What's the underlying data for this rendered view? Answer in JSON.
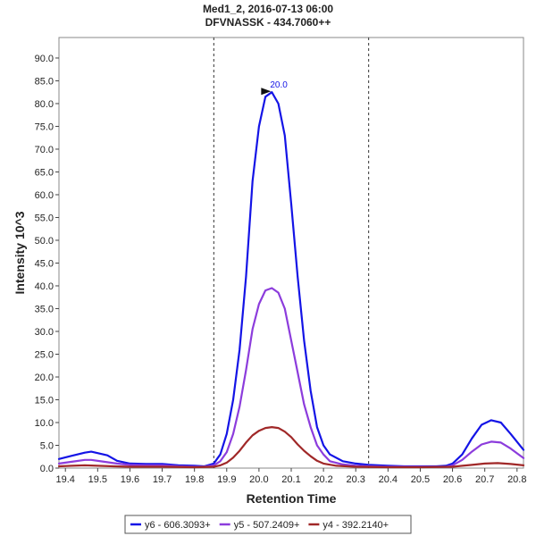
{
  "chart_data": {
    "type": "line",
    "title": "Med1_2, 2016-07-13 06:00",
    "subtitle": "DFVNASSK - 434.7060++",
    "xlabel": "Retention Time",
    "ylabel": "Intensity 10^3",
    "xlim": [
      19.38,
      20.82
    ],
    "ylim": [
      0,
      94.5
    ],
    "xticks": [
      "19.4",
      "19.5",
      "19.6",
      "19.7",
      "19.8",
      "19.9",
      "20.0",
      "20.1",
      "20.2",
      "20.3",
      "20.4",
      "20.5",
      "20.6",
      "20.7",
      "20.8"
    ],
    "yticks": [
      "0.0",
      "5.0",
      "10.0",
      "15.0",
      "20.0",
      "25.0",
      "30.0",
      "35.0",
      "40.0",
      "45.0",
      "50.0",
      "55.0",
      "60.0",
      "65.0",
      "70.0",
      "75.0",
      "80.0",
      "85.0",
      "90.0"
    ],
    "boundaries": [
      19.86,
      20.34
    ],
    "peak_annotation": {
      "label": "20.0",
      "x": 20.04,
      "y": 82.5
    },
    "legend_position": "bottom",
    "colors": {
      "y6": "#1414e6",
      "y5": "#8c3cdc",
      "y4": "#a02828"
    },
    "series": [
      {
        "name": "y6 - 606.3093+",
        "color": "#1414e6",
        "points": [
          [
            19.38,
            2.0
          ],
          [
            19.42,
            2.7
          ],
          [
            19.46,
            3.4
          ],
          [
            19.48,
            3.6
          ],
          [
            19.5,
            3.3
          ],
          [
            19.53,
            2.8
          ],
          [
            19.56,
            1.6
          ],
          [
            19.6,
            1.0
          ],
          [
            19.65,
            0.9
          ],
          [
            19.7,
            0.9
          ],
          [
            19.75,
            0.6
          ],
          [
            19.8,
            0.5
          ],
          [
            19.83,
            0.4
          ],
          [
            19.86,
            1.0
          ],
          [
            19.88,
            3.0
          ],
          [
            19.9,
            7.5
          ],
          [
            19.92,
            15.0
          ],
          [
            19.94,
            26.0
          ],
          [
            19.96,
            42.0
          ],
          [
            19.98,
            63.0
          ],
          [
            20.0,
            75.0
          ],
          [
            20.02,
            81.5
          ],
          [
            20.04,
            82.5
          ],
          [
            20.06,
            80.0
          ],
          [
            20.08,
            73.0
          ],
          [
            20.1,
            58.0
          ],
          [
            20.12,
            42.0
          ],
          [
            20.14,
            28.0
          ],
          [
            20.16,
            17.0
          ],
          [
            20.18,
            9.0
          ],
          [
            20.2,
            5.0
          ],
          [
            20.22,
            3.0
          ],
          [
            20.26,
            1.5
          ],
          [
            20.3,
            1.0
          ],
          [
            20.34,
            0.7
          ],
          [
            20.4,
            0.5
          ],
          [
            20.45,
            0.4
          ],
          [
            20.5,
            0.4
          ],
          [
            20.55,
            0.4
          ],
          [
            20.58,
            0.5
          ],
          [
            20.6,
            1.0
          ],
          [
            20.63,
            3.0
          ],
          [
            20.66,
            6.5
          ],
          [
            20.69,
            9.5
          ],
          [
            20.72,
            10.5
          ],
          [
            20.75,
            10.0
          ],
          [
            20.78,
            7.5
          ],
          [
            20.82,
            4.0
          ]
        ]
      },
      {
        "name": "y5 - 507.2409+",
        "color": "#8c3cdc",
        "points": [
          [
            19.38,
            1.0
          ],
          [
            19.42,
            1.4
          ],
          [
            19.46,
            1.8
          ],
          [
            19.48,
            1.8
          ],
          [
            19.52,
            1.4
          ],
          [
            19.56,
            1.0
          ],
          [
            19.6,
            0.7
          ],
          [
            19.65,
            0.6
          ],
          [
            19.7,
            0.6
          ],
          [
            19.75,
            0.4
          ],
          [
            19.8,
            0.3
          ],
          [
            19.83,
            0.3
          ],
          [
            19.86,
            0.6
          ],
          [
            19.88,
            1.5
          ],
          [
            19.9,
            3.5
          ],
          [
            19.92,
            7.5
          ],
          [
            19.94,
            13.5
          ],
          [
            19.96,
            21.5
          ],
          [
            19.98,
            30.5
          ],
          [
            20.0,
            36.0
          ],
          [
            20.02,
            39.0
          ],
          [
            20.04,
            39.5
          ],
          [
            20.06,
            38.5
          ],
          [
            20.08,
            35.0
          ],
          [
            20.1,
            28.0
          ],
          [
            20.12,
            21.0
          ],
          [
            20.14,
            14.0
          ],
          [
            20.16,
            9.0
          ],
          [
            20.18,
            5.0
          ],
          [
            20.2,
            3.0
          ],
          [
            20.22,
            1.5
          ],
          [
            20.26,
            0.8
          ],
          [
            20.3,
            0.5
          ],
          [
            20.34,
            0.4
          ],
          [
            20.4,
            0.3
          ],
          [
            20.5,
            0.3
          ],
          [
            20.58,
            0.3
          ],
          [
            20.6,
            0.6
          ],
          [
            20.63,
            1.8
          ],
          [
            20.66,
            3.6
          ],
          [
            20.69,
            5.2
          ],
          [
            20.72,
            5.8
          ],
          [
            20.75,
            5.6
          ],
          [
            20.78,
            4.3
          ],
          [
            20.82,
            2.2
          ]
        ]
      },
      {
        "name": "y4 - 392.2140+",
        "color": "#a02828",
        "points": [
          [
            19.38,
            0.4
          ],
          [
            19.42,
            0.5
          ],
          [
            19.46,
            0.6
          ],
          [
            19.5,
            0.5
          ],
          [
            19.55,
            0.4
          ],
          [
            19.6,
            0.3
          ],
          [
            19.7,
            0.3
          ],
          [
            19.8,
            0.2
          ],
          [
            19.86,
            0.3
          ],
          [
            19.88,
            0.6
          ],
          [
            19.9,
            1.2
          ],
          [
            19.92,
            2.3
          ],
          [
            19.94,
            3.8
          ],
          [
            19.96,
            5.6
          ],
          [
            19.98,
            7.2
          ],
          [
            20.0,
            8.2
          ],
          [
            20.02,
            8.8
          ],
          [
            20.04,
            9.0
          ],
          [
            20.06,
            8.8
          ],
          [
            20.08,
            8.0
          ],
          [
            20.1,
            6.8
          ],
          [
            20.12,
            5.2
          ],
          [
            20.14,
            3.8
          ],
          [
            20.16,
            2.6
          ],
          [
            20.18,
            1.6
          ],
          [
            20.2,
            1.0
          ],
          [
            20.24,
            0.5
          ],
          [
            20.3,
            0.3
          ],
          [
            20.4,
            0.2
          ],
          [
            20.5,
            0.2
          ],
          [
            20.6,
            0.3
          ],
          [
            20.63,
            0.5
          ],
          [
            20.66,
            0.7
          ],
          [
            20.7,
            1.0
          ],
          [
            20.74,
            1.1
          ],
          [
            20.78,
            0.9
          ],
          [
            20.82,
            0.6
          ]
        ]
      }
    ]
  }
}
